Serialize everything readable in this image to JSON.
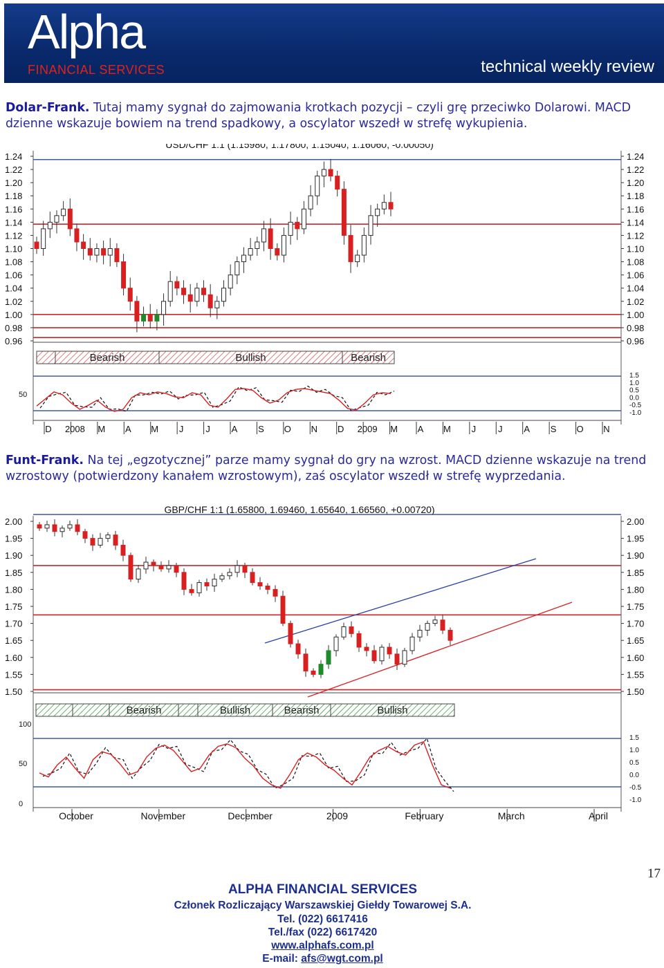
{
  "banner": {
    "logo_text": "Alpha",
    "logo_sub": "FINANCIAL  SERVICES",
    "review": "technical weekly review"
  },
  "para1": {
    "title": "Dolar-Frank.",
    "text": "Tutaj mamy sygnał do zajmowania krotkach pozycji – czyli grę przeciwko Dolarowi. MACD dzienne wskazuje bowiem na trend spadkowy, a oscylator wszedł w strefę wykupienia."
  },
  "para2": {
    "title": "Funt-Frank.",
    "text": "Na tej „egzotycznej” parze mamy sygnał do gry na wzrost. MACD dzienne wskazuje na trend wzrostowy (potwierdzony kanałem wzrostowym), zaś oscylator wszedł w strefę wyprzedania."
  },
  "chart_data": [
    {
      "type": "candlestick",
      "title": "USD/CHF 1:1 (1.15980, 1.17800, 1.15040, 1.16060, -0.00050)",
      "ylim": [
        0.96,
        1.24
      ],
      "y_ticks": [
        "1.24",
        "1.22",
        "1.20",
        "1.18",
        "1.16",
        "1.14",
        "1.12",
        "1.10",
        "1.08",
        "1.06",
        "1.04",
        "1.02",
        "1.00",
        "0.98",
        "0.96"
      ],
      "x_ticks": [
        "D",
        "2008",
        "M",
        "A",
        "M",
        "J",
        "J",
        "A",
        "S",
        "O",
        "N",
        "D",
        "2009",
        "M",
        "A",
        "M",
        "J",
        "J",
        "A",
        "S",
        "O",
        "N"
      ],
      "horizontal_lines": [
        1.235,
        1.137,
        1.0,
        0.98,
        0.965
      ],
      "closes": [
        1.1,
        1.13,
        1.14,
        1.15,
        1.16,
        1.13,
        1.11,
        1.1,
        1.09,
        1.1,
        1.09,
        1.1,
        1.08,
        1.04,
        1.02,
        0.99,
        1.0,
        0.99,
        1.0,
        1.02,
        1.05,
        1.04,
        1.03,
        1.02,
        1.04,
        1.03,
        1.01,
        1.02,
        1.04,
        1.06,
        1.08,
        1.09,
        1.1,
        1.11,
        1.13,
        1.1,
        1.09,
        1.12,
        1.14,
        1.13,
        1.16,
        1.18,
        1.21,
        1.22,
        1.21,
        1.19,
        1.12,
        1.08,
        1.09,
        1.12,
        1.15,
        1.16,
        1.17,
        1.16
      ],
      "momentum_bands": [
        "Bearish",
        "Bullish",
        "Bearish"
      ],
      "oscillator": {
        "scale_left": [
          "50"
        ],
        "scale_right": [
          "1.5",
          "1.0",
          "0.5",
          "0.0",
          "-0.5",
          "-1.0"
        ],
        "values": [
          28,
          45,
          62,
          55,
          35,
          20,
          30,
          42,
          25,
          15,
          20,
          48,
          60,
          55,
          62,
          58,
          50,
          48,
          60,
          55,
          30,
          25,
          45,
          68,
          70,
          66,
          48,
          35,
          42,
          60,
          68,
          70,
          66,
          62,
          58,
          42,
          22,
          18,
          35,
          55,
          60,
          58
        ]
      }
    },
    {
      "type": "candlestick",
      "title": "GBP/CHF 1:1 (1.65800, 1.69460, 1.65640, 1.66560, +0.00720)",
      "ylim": [
        1.5,
        2.0
      ],
      "y_ticks": [
        "2.00",
        "1.95",
        "1.90",
        "1.85",
        "1.80",
        "1.75",
        "1.70",
        "1.65",
        "1.60",
        "1.55",
        "1.50"
      ],
      "x_ticks": [
        "October",
        "November",
        "December",
        "2009",
        "February",
        "March",
        "April"
      ],
      "horizontal_lines": [
        2.02,
        1.87,
        1.725,
        1.505
      ],
      "closes": [
        1.98,
        1.99,
        1.97,
        1.98,
        1.99,
        1.97,
        1.95,
        1.93,
        1.95,
        1.96,
        1.93,
        1.9,
        1.83,
        1.86,
        1.88,
        1.87,
        1.86,
        1.87,
        1.85,
        1.8,
        1.79,
        1.82,
        1.81,
        1.83,
        1.84,
        1.85,
        1.87,
        1.85,
        1.82,
        1.81,
        1.8,
        1.78,
        1.7,
        1.64,
        1.61,
        1.56,
        1.55,
        1.58,
        1.62,
        1.66,
        1.69,
        1.67,
        1.63,
        1.62,
        1.59,
        1.63,
        1.61,
        1.58,
        1.62,
        1.66,
        1.68,
        1.7,
        1.71,
        1.68,
        1.65
      ],
      "momentum_bands": [
        "Bearish",
        "Bullish",
        "Bearish",
        "Bullish"
      ],
      "oscillator": {
        "scale_left": [
          "100",
          "50",
          "0"
        ],
        "scale_right": [
          "1.5",
          "1.0",
          "0.5",
          "0.0",
          "-0.5",
          "-1.0"
        ],
        "values": [
          48,
          42,
          60,
          72,
          55,
          40,
          68,
          80,
          76,
          62,
          45,
          50,
          72,
          85,
          90,
          82,
          66,
          50,
          55,
          75,
          88,
          92,
          86,
          70,
          58,
          40,
          30,
          25,
          45,
          68,
          78,
          72,
          60,
          52,
          40,
          30,
          50,
          72,
          82,
          88,
          80,
          75,
          90,
          95,
          60,
          30,
          25
        ]
      }
    }
  ],
  "footer": {
    "company": "ALPHA FINANCIAL SERVICES",
    "member": "Członek Rozliczający Warszawskiej Giełdy Towarowej S.A.",
    "tel": "Tel. (022) 6617416",
    "fax": "Tel./fax (022) 6617420",
    "web": "www.alphafs.com.pl",
    "email_label": "E-mail:",
    "email": "afs@wgt.com.pl"
  },
  "page_number": "17"
}
